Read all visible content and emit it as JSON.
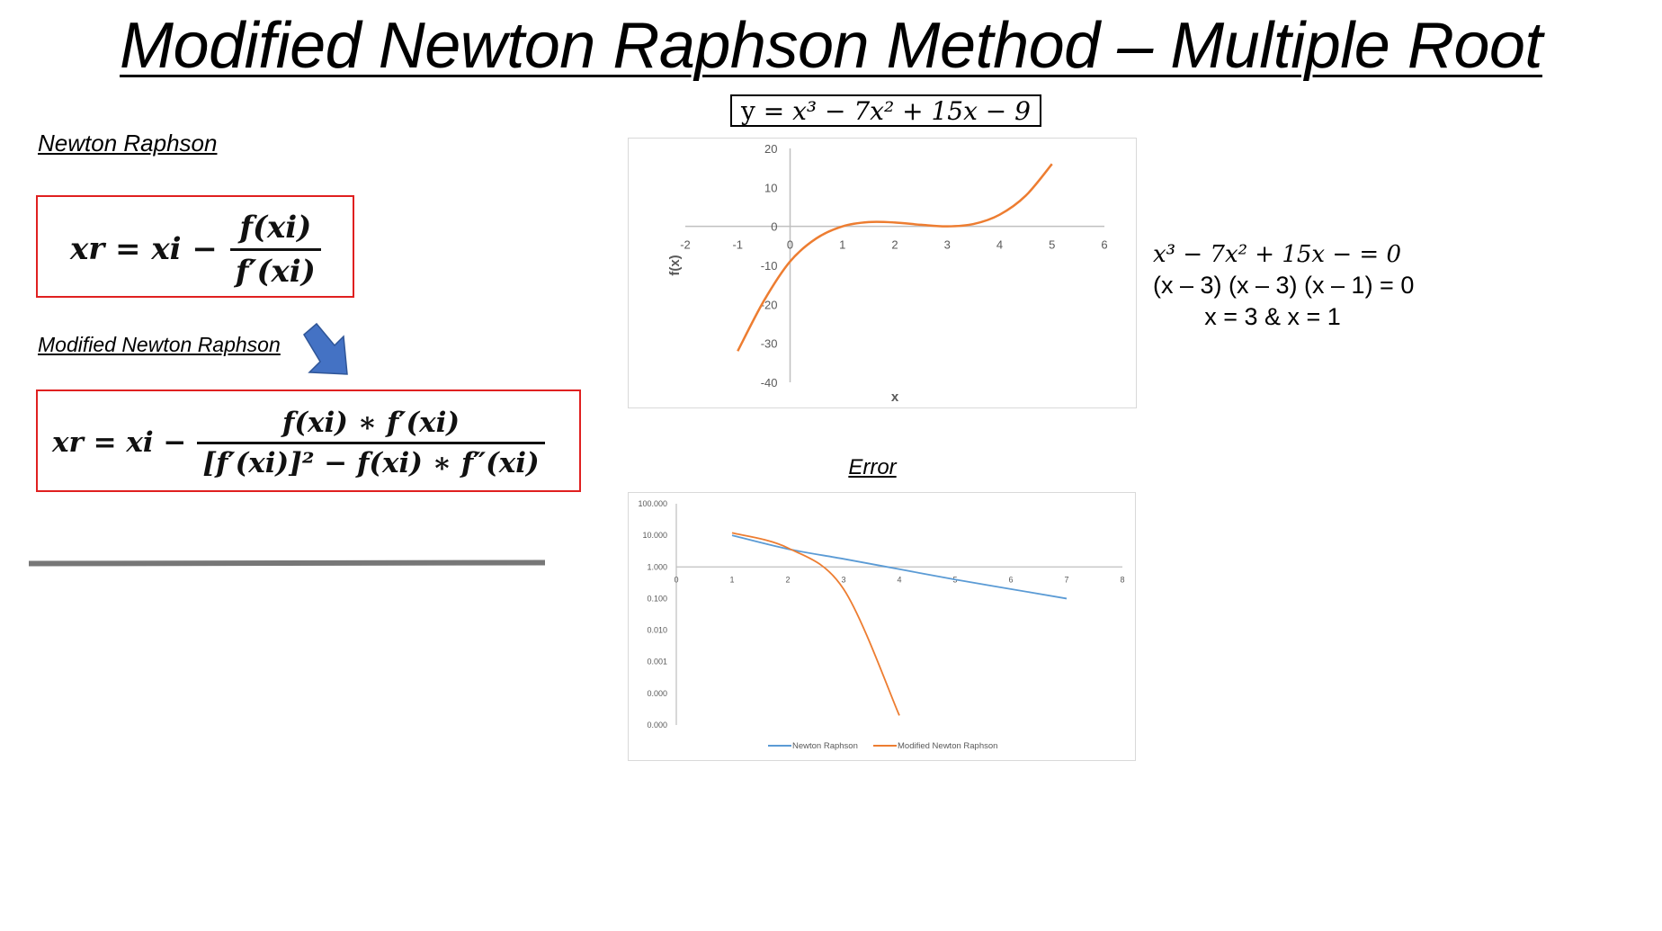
{
  "slide": {
    "title": "Modified Newton Raphson Method – Multiple Root",
    "newton_label": "Newton Raphson",
    "modified_label": "Modified Newton Raphson",
    "formula_nr": {
      "lhs": "xr = xi −",
      "numerator": "f(xi)",
      "denominator": "f′(xi)"
    },
    "formula_mnr": {
      "lhs": "xr = xi −",
      "numerator": "f(xi) ∗ f′(xi)",
      "denominator": "[f′(xi)]² − f(xi) ∗ f″(xi)"
    },
    "function_equation": {
      "prefix": "y = ",
      "expr": "x³ − 7x² + 15x − 9"
    },
    "roots": {
      "line1": "x³ − 7x² + 15x − = 0",
      "line2": "(x – 3) (x – 3) (x – 1) = 0",
      "line3": "x = 3 & x = 1"
    },
    "error_title": "Error",
    "arrow_color": "#4472c4",
    "box_border_color": "#e02020"
  },
  "chart_data": [
    {
      "type": "line",
      "title": "",
      "xlabel": "x",
      "ylabel": "f(x)",
      "xlim": [
        -2,
        6
      ],
      "ylim": [
        -40,
        20
      ],
      "x_ticks": [
        "-2",
        "-1",
        "0",
        "1",
        "2",
        "3",
        "4",
        "5",
        "6"
      ],
      "y_ticks": [
        "20",
        "10",
        "0",
        "-10",
        "-20",
        "-30",
        "-40"
      ],
      "grid": false,
      "series": [
        {
          "color": "#ed7d31",
          "x": [
            -1,
            -0.5,
            0,
            0.5,
            1,
            1.5,
            2,
            2.5,
            3,
            3.5,
            4,
            4.5,
            5
          ],
          "y": [
            -32,
            -19.1,
            -9,
            -3.1,
            0,
            1.1,
            1,
            0.4,
            0,
            0.6,
            3,
            7.9,
            16
          ]
        }
      ]
    },
    {
      "type": "line",
      "title": "Error",
      "xlabel": "",
      "ylabel": "",
      "y_scale": "log",
      "xlim": [
        0,
        8
      ],
      "x_ticks": [
        "0",
        "1",
        "2",
        "3",
        "4",
        "5",
        "6",
        "7",
        "8"
      ],
      "y_ticks": [
        "100.000",
        "10.000",
        "1.000",
        "0.100",
        "0.010",
        "0.001",
        "0.000",
        "0.000"
      ],
      "legend": "bottom",
      "series": [
        {
          "name": "Newton Raphson",
          "color": "#5b9bd5",
          "x": [
            1,
            2,
            3,
            4,
            5,
            6,
            7
          ],
          "y": [
            10,
            3.7,
            1.8,
            0.85,
            0.4,
            0.2,
            0.1
          ]
        },
        {
          "name": "Modified Newton Raphson",
          "color": "#ed7d31",
          "x": [
            1,
            2,
            3,
            4
          ],
          "y": [
            12,
            4,
            0.2,
            2e-05
          ]
        }
      ]
    }
  ]
}
